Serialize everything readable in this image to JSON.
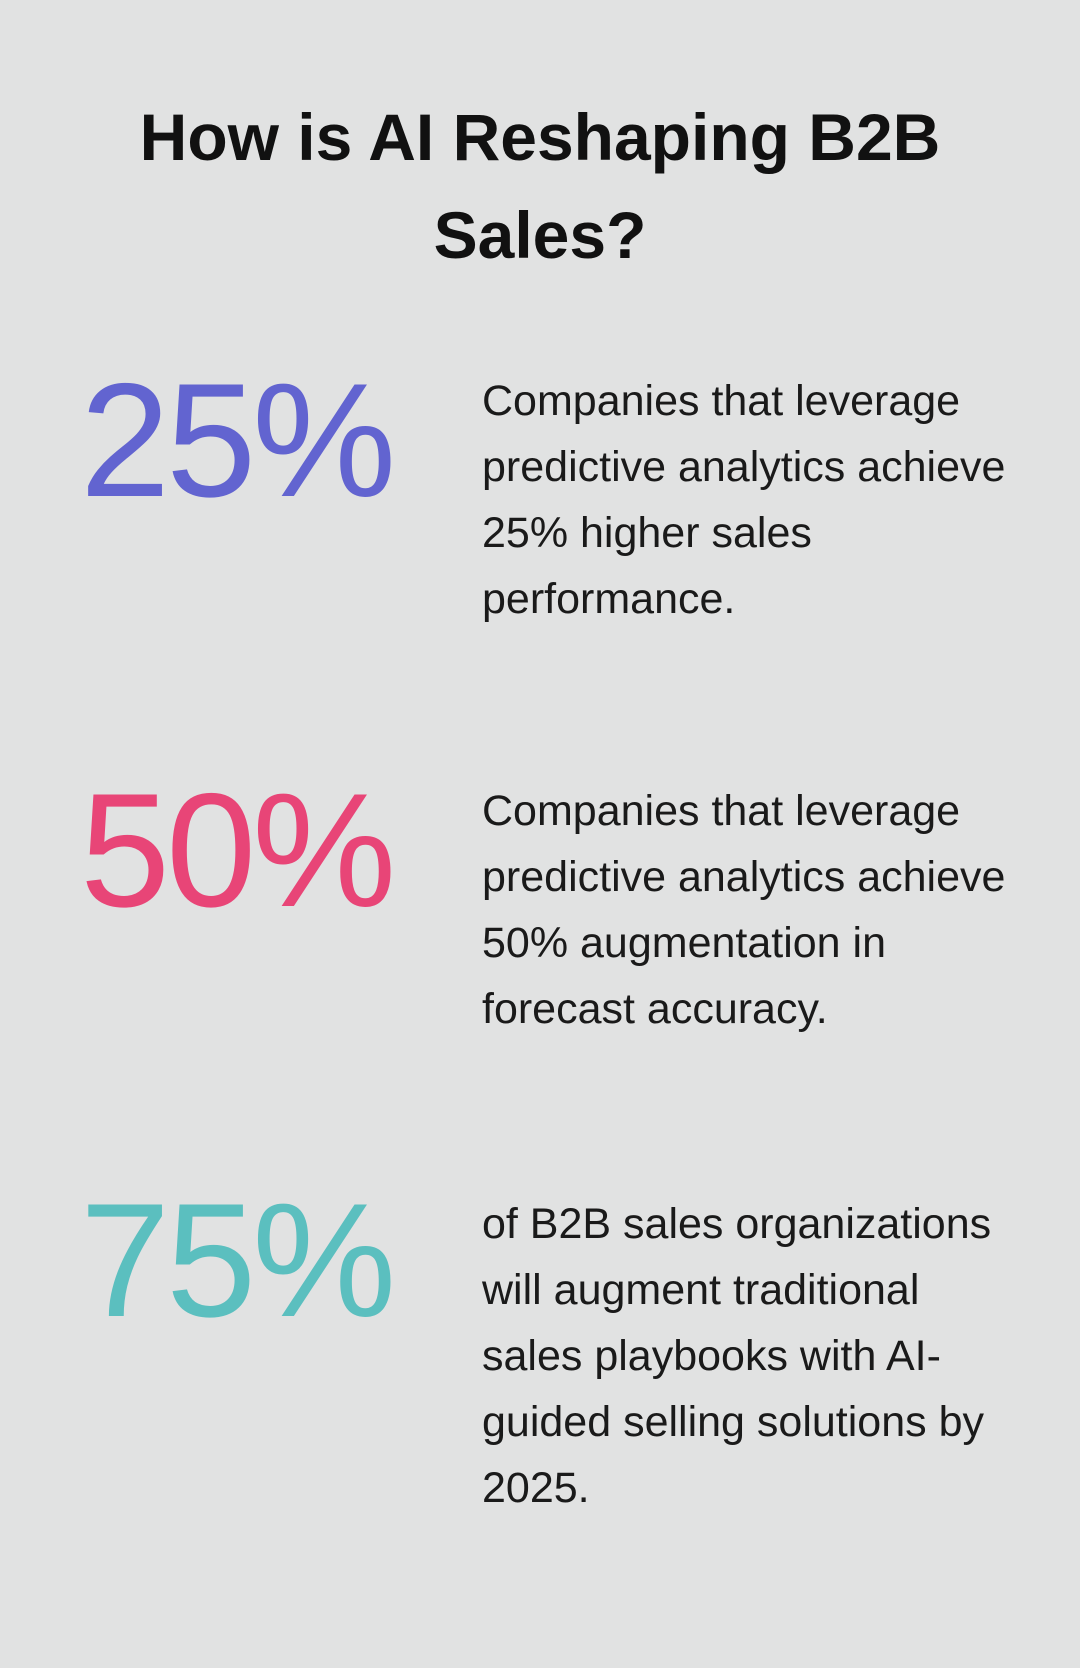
{
  "title": "How is AI Reshaping B2B Sales?",
  "stats": [
    {
      "figure": "25%",
      "text": "Companies that leverage predictive analytics achieve 25% higher sales performance."
    },
    {
      "figure": "50%",
      "text": "Companies that leverage predictive analytics achieve 50% augmentation in forecast accuracy."
    },
    {
      "figure": "75%",
      "text": "of B2B sales organizations will augment traditional sales playbooks with AI-guided selling solutions by 2025."
    }
  ]
}
